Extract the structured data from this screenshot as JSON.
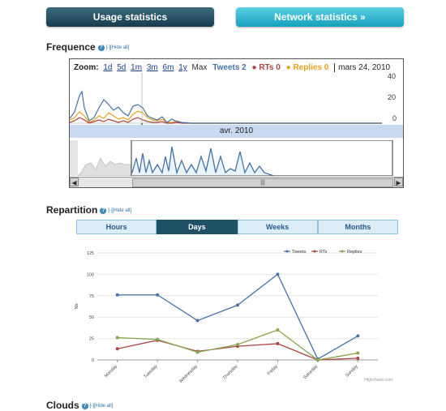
{
  "header": {
    "usage_button": "Usage statistics",
    "network_button": "Network statistics »"
  },
  "frequence": {
    "title": "Frequence",
    "help_icon": "?",
    "hide_all": "[-][Hide all]",
    "zoom_label": "Zoom:",
    "zoom_options": [
      "1d",
      "5d",
      "1m",
      "3m",
      "6m",
      "1y"
    ],
    "zoom_max": "Max",
    "legend": {
      "tweets": "Tweets 2",
      "rts": "RTs 0",
      "replies": "Replies 0",
      "date": "mars 24, 2010"
    },
    "y_ticks": [
      "40",
      "20",
      "0"
    ],
    "date_strip": "avr. 2010",
    "scroll_left": "◀",
    "scroll_right": "▶",
    "scroll_thumb": "|||",
    "colors": {
      "tweets": "#4572a7",
      "rts": "#aa4643",
      "replies": "#e8a020"
    }
  },
  "repartition": {
    "title": "Repartition",
    "help_icon": "?",
    "hide_all": "[-][Hide all]",
    "tabs": [
      "Hours",
      "Days",
      "Weeks",
      "Months"
    ],
    "active_tab": "Days"
  },
  "chart_data": {
    "type": "line",
    "categories": [
      "Monday",
      "Tuesday",
      "Wednesday",
      "Thursday",
      "Friday",
      "Saturday",
      "Sunday"
    ],
    "series": [
      {
        "name": "Tweets",
        "values": [
          76,
          76,
          46,
          64,
          100,
          1,
          28
        ],
        "color": "#4572a7"
      },
      {
        "name": "RTs",
        "values": [
          13,
          23,
          10,
          16,
          19,
          0,
          2
        ],
        "color": "#aa4643"
      },
      {
        "name": "Replies",
        "values": [
          26,
          24,
          9,
          18,
          35,
          0,
          8
        ],
        "color": "#89a54e"
      }
    ],
    "ylabel": "Nb",
    "yticks": [
      0,
      25,
      50,
      75,
      100,
      125
    ],
    "ylim": [
      0,
      125
    ],
    "legend_position": "top-right",
    "credit": "Highcharts.com"
  },
  "clouds": {
    "title": "Clouds",
    "help_icon": "?",
    "hide_all": "[-][Hide all]"
  }
}
